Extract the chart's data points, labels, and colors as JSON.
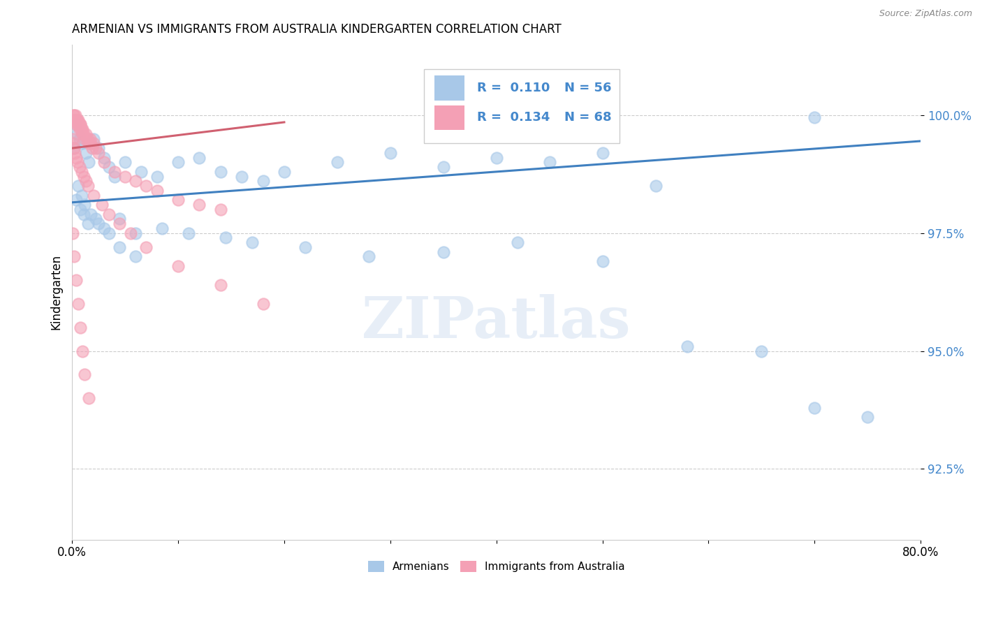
{
  "title": "ARMENIAN VS IMMIGRANTS FROM AUSTRALIA KINDERGARTEN CORRELATION CHART",
  "source": "Source: ZipAtlas.com",
  "ylabel": "Kindergarten",
  "x_min": 0.0,
  "x_max": 80.0,
  "y_min": 91.0,
  "y_max": 101.5,
  "y_ticks": [
    92.5,
    95.0,
    97.5,
    100.0
  ],
  "x_ticks": [
    0.0,
    10.0,
    20.0,
    30.0,
    40.0,
    50.0,
    60.0,
    70.0,
    80.0
  ],
  "legend_label_blue": "Armenians",
  "legend_label_pink": "Immigrants from Australia",
  "blue_color": "#a8c8e8",
  "pink_color": "#f4a0b5",
  "blue_line_color": "#4080c0",
  "pink_line_color": "#d06070",
  "text_color_blue": "#4488cc",
  "watermark": "ZIPatlas",
  "blue_trend_x": [
    0.0,
    80.0
  ],
  "blue_trend_y": [
    98.15,
    99.45
  ],
  "pink_trend_x": [
    0.0,
    20.0
  ],
  "pink_trend_y": [
    99.3,
    99.85
  ],
  "blue_x": [
    0.3,
    0.5,
    0.7,
    1.0,
    1.3,
    1.6,
    2.0,
    2.5,
    3.0,
    3.5,
    4.0,
    5.0,
    6.5,
    8.0,
    10.0,
    12.0,
    14.0,
    16.0,
    18.0,
    20.0,
    25.0,
    30.0,
    35.0,
    40.0,
    45.0,
    50.0,
    55.0,
    70.0,
    0.4,
    0.8,
    1.1,
    1.5,
    2.2,
    3.0,
    4.5,
    6.0,
    8.5,
    11.0,
    14.5,
    17.0,
    22.0,
    28.0,
    35.0,
    42.0,
    50.0,
    58.0,
    65.0,
    70.0,
    75.0,
    0.2,
    0.6,
    0.9,
    1.2,
    1.8,
    2.5,
    3.5,
    4.5,
    6.0
  ],
  "blue_y": [
    99.8,
    99.6,
    99.5,
    99.4,
    99.2,
    99.0,
    99.5,
    99.3,
    99.1,
    98.9,
    98.7,
    99.0,
    98.8,
    98.7,
    99.0,
    99.1,
    98.8,
    98.7,
    98.6,
    98.8,
    99.0,
    99.2,
    98.9,
    99.1,
    99.0,
    99.2,
    98.5,
    99.95,
    98.2,
    98.0,
    97.9,
    97.7,
    97.8,
    97.6,
    97.8,
    97.5,
    97.6,
    97.5,
    97.4,
    97.3,
    97.2,
    97.0,
    97.1,
    97.3,
    96.9,
    95.1,
    95.0,
    93.8,
    93.6,
    99.3,
    98.5,
    98.3,
    98.1,
    97.9,
    97.7,
    97.5,
    97.2,
    97.0
  ],
  "pink_x": [
    0.1,
    0.15,
    0.2,
    0.25,
    0.3,
    0.35,
    0.4,
    0.45,
    0.5,
    0.55,
    0.6,
    0.65,
    0.7,
    0.75,
    0.8,
    0.85,
    0.9,
    0.95,
    1.0,
    1.1,
    1.2,
    1.3,
    1.4,
    1.5,
    1.6,
    1.7,
    1.8,
    1.9,
    2.0,
    2.2,
    2.5,
    3.0,
    4.0,
    5.0,
    6.0,
    7.0,
    8.0,
    10.0,
    12.0,
    14.0,
    0.05,
    0.12,
    0.18,
    0.28,
    0.38,
    0.5,
    0.7,
    0.9,
    1.1,
    1.3,
    1.5,
    2.0,
    2.8,
    3.5,
    4.5,
    5.5,
    7.0,
    10.0,
    14.0,
    18.0,
    0.08,
    0.2,
    0.4,
    0.6,
    0.8,
    1.0,
    1.2,
    1.6
  ],
  "pink_y": [
    100.0,
    99.9,
    100.0,
    99.9,
    100.0,
    99.9,
    99.8,
    99.9,
    99.9,
    99.8,
    99.9,
    99.8,
    99.7,
    99.8,
    99.8,
    99.7,
    99.7,
    99.6,
    99.7,
    99.6,
    99.5,
    99.6,
    99.5,
    99.5,
    99.4,
    99.5,
    99.4,
    99.3,
    99.4,
    99.3,
    99.2,
    99.0,
    98.8,
    98.7,
    98.6,
    98.5,
    98.4,
    98.2,
    98.1,
    98.0,
    99.5,
    99.4,
    99.3,
    99.2,
    99.1,
    99.0,
    98.9,
    98.8,
    98.7,
    98.6,
    98.5,
    98.3,
    98.1,
    97.9,
    97.7,
    97.5,
    97.2,
    96.8,
    96.4,
    96.0,
    97.5,
    97.0,
    96.5,
    96.0,
    95.5,
    95.0,
    94.5,
    94.0
  ]
}
